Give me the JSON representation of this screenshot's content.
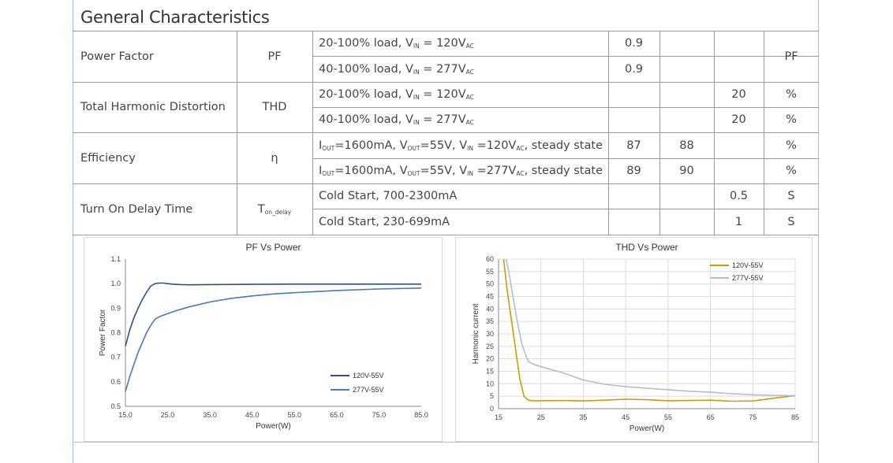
{
  "section_title": "General Characteristics",
  "table": {
    "rows": [
      {
        "param": "Power Factor",
        "symbol": "PF",
        "unit": "PF",
        "conds": [
          {
            "pre": "20-100% load, V",
            "sub1": "IN",
            "mid": " = 120V",
            "sub2": "AC",
            "post": "",
            "v1": "0.9",
            "v2": "",
            "v3": "",
            "unit": ""
          },
          {
            "pre": "40-100% load, V",
            "sub1": "IN",
            "mid": " = 277V",
            "sub2": "AC",
            "post": "",
            "v1": "0.9",
            "v2": "",
            "v3": "",
            "unit": ""
          }
        ]
      },
      {
        "param": "Total Harmonic Distortion",
        "symbol": "THD",
        "unit": "",
        "conds": [
          {
            "pre": "20-100% load, V",
            "sub1": "IN",
            "mid": " = 120V",
            "sub2": "AC",
            "post": "",
            "v1": "",
            "v2": "",
            "v3": "20",
            "unit": "%"
          },
          {
            "pre": "40-100% load, V",
            "sub1": "IN",
            "mid": " = 277V",
            "sub2": "AC",
            "post": "",
            "v1": "",
            "v2": "",
            "v3": "20",
            "unit": "%"
          }
        ]
      },
      {
        "param": "Efficiency",
        "symbol": "η",
        "unit": "",
        "conds": [
          {
            "pre": "I",
            "sub1": "OUT",
            "mid": "=1600mA, V",
            "sub2": "OUT",
            "post": "=55V, V",
            "sub3": "IN",
            "post2": " =120V",
            "sub4": "AC",
            "post3": ", steady state",
            "v1": "87",
            "v2": "88",
            "v3": "",
            "unit": "%"
          },
          {
            "pre": "I",
            "sub1": "OUT",
            "mid": "=1600mA, V",
            "sub2": "OUT",
            "post": "=55V, V",
            "sub3": "IN",
            "post2": " =277V",
            "sub4": "AC",
            "post3": ", steady state",
            "v1": "89",
            "v2": "90",
            "v3": "",
            "unit": "%"
          }
        ]
      },
      {
        "param": "Turn On Delay Time",
        "symbol_main": "T",
        "symbol_sub": "on_delay",
        "unit": "",
        "conds": [
          {
            "pre": "Cold Start, 700-2300mA",
            "v1": "",
            "v2": "",
            "v3": "0.5",
            "unit": "S"
          },
          {
            "pre": "Cold Start, 230-699mA",
            "v1": "",
            "v2": "",
            "v3": "1",
            "unit": "S"
          }
        ]
      }
    ]
  },
  "chart_data": [
    {
      "type": "line",
      "title": "PF Vs Power",
      "xlabel": "Power(W)",
      "ylabel": "Power Factor",
      "xlim": [
        15,
        85
      ],
      "ylim": [
        0.5,
        1.1
      ],
      "xticks": [
        "15.0",
        "25.0",
        "35.0",
        "45.0",
        "55.0",
        "65.0",
        "75.0",
        "85.0"
      ],
      "yticks": [
        "0.5",
        "0.6",
        "0.7",
        "0.8",
        "0.9",
        "1.0",
        "1.1"
      ],
      "legend_position": "bottom-right",
      "series": [
        {
          "name": "120V-55V",
          "color": "#2f4f86",
          "x": [
            15,
            16,
            17,
            18,
            19,
            20,
            21,
            22,
            23,
            24,
            25,
            26,
            28,
            30,
            35,
            45,
            55,
            65,
            75,
            85
          ],
          "y": [
            0.745,
            0.81,
            0.86,
            0.9,
            0.935,
            0.965,
            0.99,
            1.0,
            1.002,
            1.002,
            1.0,
            0.998,
            0.996,
            0.995,
            0.996,
            0.997,
            0.998,
            0.998,
            0.998,
            0.998
          ]
        },
        {
          "name": "277V-55V",
          "color": "#4a78c0",
          "x": [
            15,
            16,
            17,
            18,
            19,
            20,
            21,
            22,
            23,
            25,
            27,
            30,
            35,
            40,
            45,
            50,
            55,
            65,
            75,
            85
          ],
          "y": [
            0.56,
            0.62,
            0.67,
            0.72,
            0.76,
            0.8,
            0.83,
            0.855,
            0.865,
            0.878,
            0.89,
            0.905,
            0.925,
            0.94,
            0.95,
            0.958,
            0.963,
            0.972,
            0.978,
            0.982
          ]
        }
      ]
    },
    {
      "type": "line",
      "title": "THD Vs Power",
      "xlabel": "Power(W)",
      "ylabel": "Harmonic current",
      "xlim": [
        15,
        85
      ],
      "ylim": [
        0,
        60
      ],
      "xticks": [
        "15",
        "25",
        "35",
        "45",
        "55",
        "65",
        "75",
        "85"
      ],
      "yticks": [
        "0",
        "5",
        "10",
        "15",
        "20",
        "25",
        "30",
        "35",
        "40",
        "45",
        "50",
        "55",
        "60"
      ],
      "legend_position": "top-right",
      "series": [
        {
          "name": "120V-55V",
          "color": "#c9a000",
          "x": [
            16.2,
            17,
            18,
            19,
            20,
            21,
            22,
            23,
            25,
            30,
            35,
            40,
            45,
            50,
            55,
            60,
            65,
            70,
            75,
            80,
            85
          ],
          "y": [
            60,
            48,
            36,
            24,
            12,
            5,
            3.4,
            3.2,
            3.2,
            3.3,
            3.1,
            3.4,
            3.8,
            3.6,
            3.2,
            3.3,
            3.4,
            3.0,
            3.1,
            4.2,
            5.2
          ]
        },
        {
          "name": "277V-55V",
          "color": "#b3bcd6",
          "x": [
            16.8,
            17.5,
            18.5,
            19.5,
            20.5,
            21.5,
            22,
            23,
            25,
            30,
            35,
            40,
            45,
            50,
            55,
            60,
            65,
            70,
            75,
            80,
            85
          ],
          "y": [
            60,
            54,
            44,
            34,
            26,
            21,
            19,
            18,
            16.8,
            14.5,
            11.5,
            9.8,
            8.8,
            8.2,
            7.6,
            7,
            6.6,
            6,
            5.6,
            5.3,
            5.2
          ]
        }
      ]
    }
  ]
}
